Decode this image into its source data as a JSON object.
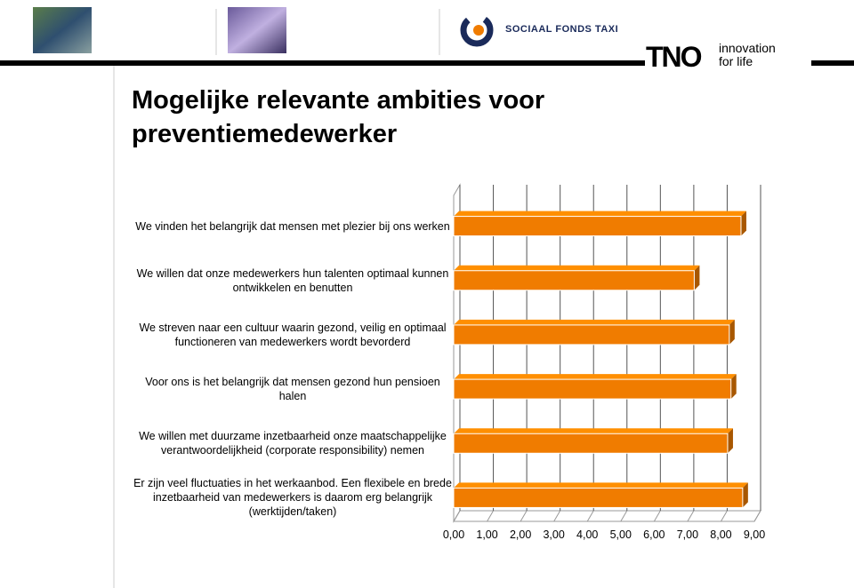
{
  "header": {
    "organization": "SOCIAAL FONDS TAXI",
    "logo": "TNO",
    "tagline_1": "innovation",
    "tagline_2": "for life"
  },
  "chart_data": {
    "type": "bar",
    "orientation": "horizontal",
    "title": "Mogelijke relevante ambities voor preventiemedewerker",
    "categories": [
      "We vinden het belangrijk dat mensen met plezier bij ons werken",
      "We willen dat onze medewerkers hun talenten optimaal kunnen ontwikkelen en benutten",
      "We streven naar een cultuur waarin gezond, veilig en optimaal functioneren van medewerkers wordt bevorderd",
      "Voor ons is het belangrijk dat mensen gezond hun pensioen halen",
      "We willen met duurzame inzetbaarheid onze maatschappelijke verantwoordelijkheid (corporate responsibility) nemen",
      "Er zijn veel fluctuaties in het werkaanbod. Een flexibele en brede inzetbaarheid van medewerkers is daarom erg belangrijk (werktijden/taken)"
    ],
    "values": [
      8.6,
      7.2,
      8.25,
      8.3,
      8.2,
      8.65
    ],
    "color": "#f07c00",
    "xlim": [
      0,
      9
    ],
    "xticks": [
      {
        "value": 0,
        "label": "0,00"
      },
      {
        "value": 1,
        "label": "1,00"
      },
      {
        "value": 2,
        "label": "2,00"
      },
      {
        "value": 3,
        "label": "3,00"
      },
      {
        "value": 4,
        "label": "4,00"
      },
      {
        "value": 5,
        "label": "5,00"
      },
      {
        "value": 6,
        "label": "6,00"
      },
      {
        "value": 7,
        "label": "7,00"
      },
      {
        "value": 8,
        "label": "8,00"
      },
      {
        "value": 9,
        "label": "9,00"
      }
    ],
    "grid": true
  }
}
